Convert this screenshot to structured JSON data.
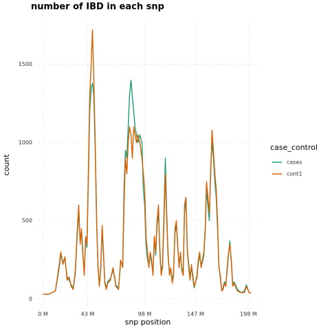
{
  "chart_data": {
    "type": "line",
    "title": "number of IBD in each snp",
    "x_label": "snp position",
    "y_label": "count",
    "legend_title": "case_control",
    "legend": "right",
    "x": [
      0,
      5.3,
      11.9,
      15.2,
      17.2,
      19.2,
      21.2,
      23.2,
      25.2,
      27.2,
      29.1,
      31.1,
      33.1,
      34.4,
      35.8,
      37.1,
      38.4,
      39.7,
      41.1,
      42.4,
      43.7,
      45.0,
      46.4,
      47.7,
      49.0,
      50.3,
      51.7,
      53.0,
      54.3,
      55.6,
      57.0,
      58.3,
      59.6,
      60.9,
      62.3,
      64.9,
      67.5,
      68.9,
      70.2,
      72.8,
      74.8,
      76.8,
      78.1,
      79.5,
      80.8,
      82.1,
      83.4,
      84.8,
      86.1,
      87.4,
      88.7,
      90.1,
      91.4,
      93.4,
      95.4,
      96.7,
      98.0,
      99.3,
      100.7,
      102.0,
      103.3,
      104.6,
      106.0,
      107.3,
      108.6,
      109.9,
      111.3,
      112.6,
      113.9,
      115.2,
      116.6,
      117.9,
      119.2,
      120.5,
      121.9,
      123.2,
      124.5,
      125.8,
      127.2,
      128.5,
      129.8,
      131.1,
      132.5,
      133.8,
      135.1,
      136.4,
      137.7,
      139.1,
      140.4,
      141.7,
      143.0,
      144.4,
      145.7,
      147.0,
      148.3,
      149.7,
      151.0,
      152.3,
      153.6,
      155.0,
      156.3,
      157.6,
      158.9,
      160.3,
      161.6,
      162.9,
      164.2,
      165.6,
      166.9,
      168.2,
      169.5,
      170.9,
      172.2,
      173.5,
      174.8,
      176.2,
      177.5,
      178.8,
      180.1,
      181.5,
      182.8,
      184.1,
      185.4,
      187.4,
      190.7,
      194.0,
      196.0,
      198.7,
      200.7
    ],
    "series": [
      {
        "name": "cases",
        "color": "#1b9e77",
        "values": [
          30,
          30,
          50,
          180,
          280,
          240,
          250,
          140,
          120,
          90,
          70,
          160,
          420,
          550,
          380,
          420,
          280,
          170,
          380,
          330,
          750,
          1200,
          1350,
          1380,
          1300,
          950,
          480,
          220,
          90,
          180,
          450,
          280,
          110,
          70,
          110,
          130,
          180,
          150,
          90,
          70,
          230,
          220,
          700,
          950,
          900,
          1100,
          1300,
          1400,
          1300,
          1200,
          1100,
          1050,
          1000,
          1050,
          1000,
          700,
          600,
          350,
          250,
          220,
          280,
          230,
          170,
          380,
          280,
          470,
          550,
          320,
          160,
          220,
          550,
          900,
          550,
          280,
          170,
          180,
          120,
          170,
          420,
          480,
          330,
          220,
          280,
          200,
          170,
          550,
          650,
          320,
          220,
          150,
          200,
          130,
          70,
          110,
          130,
          230,
          280,
          220,
          230,
          280,
          430,
          700,
          600,
          500,
          850,
          1000,
          900,
          750,
          650,
          450,
          220,
          130,
          60,
          70,
          110,
          90,
          180,
          280,
          370,
          230,
          90,
          110,
          90,
          60,
          40,
          50,
          90,
          40,
          40
        ]
      },
      {
        "name": "cont1",
        "color": "#d95f02",
        "values": [
          30,
          30,
          50,
          200,
          300,
          220,
          270,
          120,
          140,
          80,
          60,
          180,
          450,
          600,
          350,
          450,
          300,
          150,
          400,
          350,
          800,
          1300,
          1500,
          1720,
          1400,
          1000,
          500,
          200,
          80,
          200,
          470,
          300,
          100,
          60,
          100,
          120,
          200,
          140,
          80,
          60,
          250,
          200,
          600,
          900,
          800,
          1000,
          1100,
          1050,
          900,
          1100,
          1050,
          1000,
          1050,
          1000,
          900,
          800,
          700,
          400,
          300,
          200,
          300,
          250,
          150,
          400,
          300,
          500,
          600,
          300,
          150,
          200,
          500,
          800,
          500,
          300,
          150,
          200,
          100,
          150,
          450,
          500,
          350,
          200,
          300,
          180,
          150,
          600,
          650,
          300,
          200,
          120,
          220,
          150,
          80,
          100,
          150,
          250,
          300,
          200,
          250,
          300,
          450,
          750,
          650,
          550,
          800,
          1080,
          950,
          800,
          700,
          500,
          200,
          150,
          50,
          60,
          100,
          80,
          200,
          300,
          350,
          250,
          80,
          100,
          80,
          50,
          40,
          40,
          80,
          40,
          40
        ]
      }
    ],
    "xlim": [
      -5,
      207
    ],
    "ylim": [
      -45,
      1780
    ],
    "xticks": [
      {
        "value": 0,
        "label": "0 M"
      },
      {
        "value": 43,
        "label": "43 M"
      },
      {
        "value": 98,
        "label": "98 M"
      },
      {
        "value": 147,
        "label": "147 M"
      },
      {
        "value": 198,
        "label": "198 M"
      }
    ],
    "yticks": [
      0,
      500,
      1000,
      1500
    ],
    "grid": true
  }
}
